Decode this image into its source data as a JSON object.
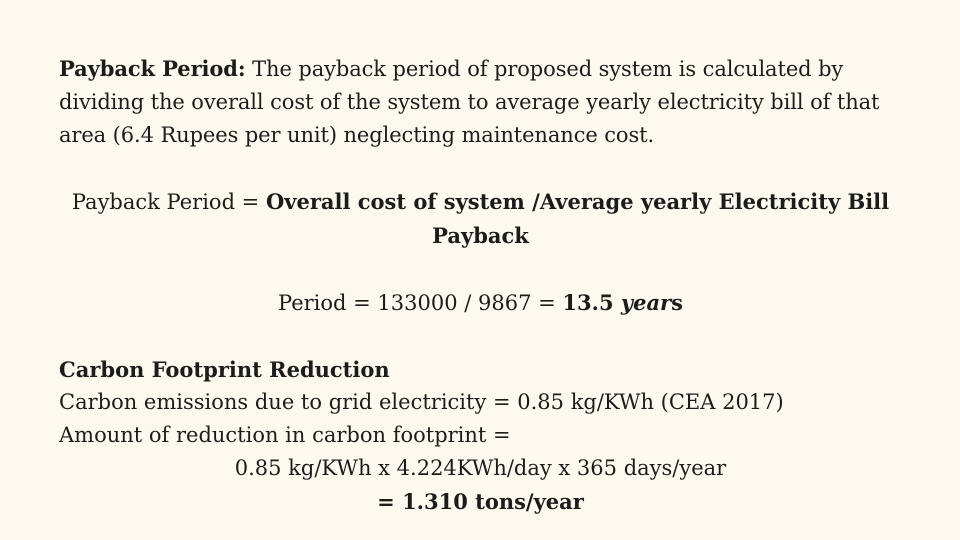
{
  "payback": {
    "label": "Payback Period:",
    "description": " The payback period of proposed system is calculated by dividing the overall cost of the system to average yearly electricity bill of that area (6.4 Rupees per unit) neglecting maintenance cost.",
    "formula_prefix": "Payback Period = ",
    "formula_bold": "Overall cost of system /Average yearly Electricity Bill",
    "formula_cont": "Payback",
    "result_prefix": "Period = 133000 / 9867 = ",
    "result_value": "13.5 ",
    "result_unit_italic": "year",
    "result_unit_tail": "s"
  },
  "carbon": {
    "heading": "Carbon Footprint Reduction",
    "line1": "Carbon emissions due to grid electricity = 0.85 kg/KWh (CEA 2017)",
    "line2": "Amount of reduction in carbon footprint =",
    "calc": "0.85 kg/KWh x 4.224KWh/day x 365 days/year",
    "result_prefix": "= ",
    "result_value": "1.310 tons/year"
  }
}
